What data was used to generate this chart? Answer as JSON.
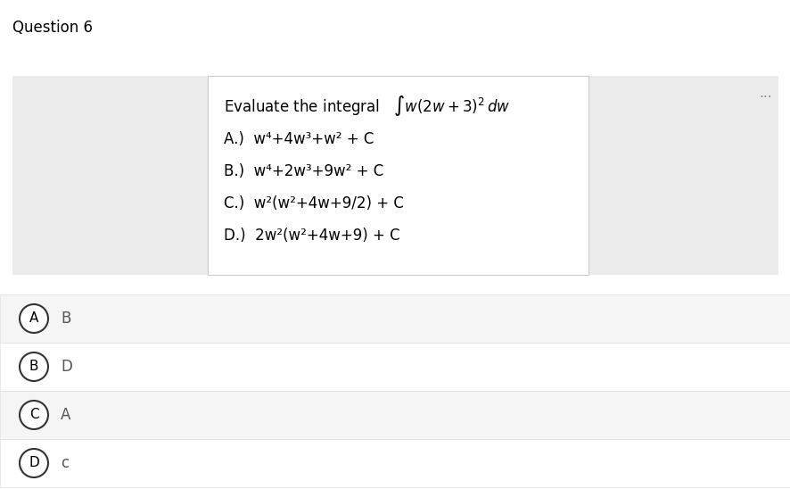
{
  "title": "Question 6",
  "question_line": "Evaluate the integral   $\\int w(2w + 3)^2\\,dw$",
  "options": [
    "A.)  $\\mathregular{w^4}$$\\mathregular{+4w^3+w^2}$ + C",
    "B.)  $\\mathregular{w^4}$$\\mathregular{+2w^3+9w^2}$ + C",
    "C.)  $\\mathregular{w^2(w^2+4w+9/2)}$ + C",
    "D.)  $\\mathregular{2w^2(w^2+4w+9)}$ + C"
  ],
  "options_plain": [
    "A.)  w⁴+4w³+w² + C",
    "B.)  w⁴+2w³+9w² + C",
    "C.)  w²(w²+4w+9/2) + C",
    "D.)  2w²(w²+4w+9) + C"
  ],
  "answers": [
    {
      "circle_letter": "A",
      "answer_text": "B"
    },
    {
      "circle_letter": "B",
      "answer_text": "D"
    },
    {
      "circle_letter": "C",
      "answer_text": "A"
    },
    {
      "circle_letter": "D",
      "answer_text": "c"
    }
  ],
  "bg_color": "#ffffff",
  "left_panel_color": "#ebebeb",
  "right_panel_color": "#ebebeb",
  "mid_panel_color": "#ffffff",
  "answer_row_bg_odd": "#f5f5f5",
  "answer_row_bg_even": "#ffffff",
  "answer_border_color": "#e0e0e0",
  "three_dots_color": "#888888",
  "title_fontsize": 12,
  "question_fontsize": 12,
  "option_fontsize": 12,
  "answer_fontsize": 12,
  "circle_fontsize": 11
}
